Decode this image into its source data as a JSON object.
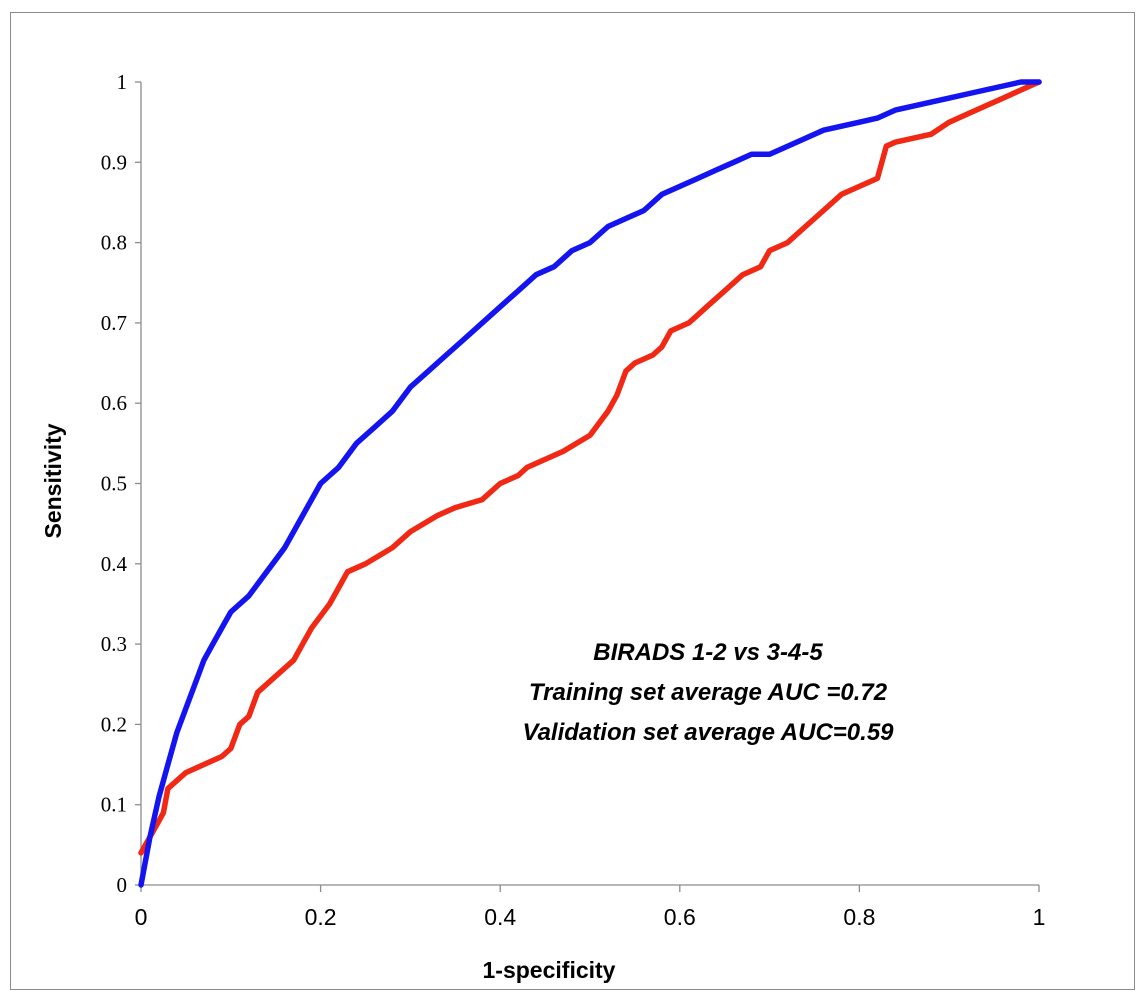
{
  "chart_data": {
    "type": "line",
    "title": "",
    "xlabel": "1-specificity",
    "ylabel": "Sensitivity",
    "xlim": [
      0,
      1
    ],
    "ylim": [
      0,
      1
    ],
    "x_ticks": [
      "0",
      "0.2",
      "0.4",
      "0.6",
      "0.8",
      "1"
    ],
    "y_ticks": [
      "0",
      "0.1",
      "0.2",
      "0.3",
      "0.4",
      "0.5",
      "0.6",
      "0.7",
      "0.8",
      "0.9",
      "1"
    ],
    "grid": false,
    "annotations": [
      {
        "text": "BIRADS 1-2 vs 3-4-5",
        "color": "#000000"
      },
      {
        "text": "Training set average AUC =0.72",
        "color": "#1414f0"
      },
      {
        "text": "Validation set average AUC=0.59",
        "color": "#f02814"
      }
    ],
    "series": [
      {
        "color": "#1414f0",
        "x": [
          0,
          0.01,
          0.02,
          0.03,
          0.04,
          0.05,
          0.06,
          0.07,
          0.08,
          0.09,
          0.1,
          0.12,
          0.14,
          0.16,
          0.18,
          0.2,
          0.22,
          0.24,
          0.26,
          0.28,
          0.3,
          0.32,
          0.34,
          0.36,
          0.38,
          0.4,
          0.42,
          0.44,
          0.46,
          0.48,
          0.5,
          0.52,
          0.54,
          0.56,
          0.58,
          0.6,
          0.62,
          0.64,
          0.66,
          0.68,
          0.7,
          0.72,
          0.74,
          0.76,
          0.78,
          0.8,
          0.82,
          0.84,
          0.86,
          0.88,
          0.9,
          0.92,
          0.94,
          0.96,
          0.98,
          1.0
        ],
        "y": [
          0,
          0.06,
          0.11,
          0.15,
          0.19,
          0.22,
          0.25,
          0.28,
          0.3,
          0.32,
          0.34,
          0.36,
          0.39,
          0.42,
          0.46,
          0.5,
          0.52,
          0.55,
          0.57,
          0.59,
          0.62,
          0.64,
          0.66,
          0.68,
          0.7,
          0.72,
          0.74,
          0.76,
          0.77,
          0.79,
          0.8,
          0.82,
          0.83,
          0.84,
          0.86,
          0.87,
          0.88,
          0.89,
          0.9,
          0.91,
          0.91,
          0.92,
          0.93,
          0.94,
          0.945,
          0.95,
          0.955,
          0.965,
          0.97,
          0.975,
          0.98,
          0.985,
          0.99,
          0.995,
          1.0,
          1.0
        ]
      },
      {
        "color": "#f02814",
        "x": [
          0,
          0.005,
          0.01,
          0.02,
          0.025,
          0.03,
          0.05,
          0.07,
          0.09,
          0.1,
          0.11,
          0.12,
          0.13,
          0.15,
          0.17,
          0.18,
          0.19,
          0.21,
          0.22,
          0.23,
          0.25,
          0.28,
          0.3,
          0.33,
          0.35,
          0.38,
          0.39,
          0.4,
          0.42,
          0.43,
          0.45,
          0.47,
          0.5,
          0.52,
          0.53,
          0.54,
          0.55,
          0.57,
          0.58,
          0.59,
          0.61,
          0.62,
          0.63,
          0.65,
          0.67,
          0.69,
          0.7,
          0.72,
          0.74,
          0.76,
          0.78,
          0.8,
          0.82,
          0.83,
          0.84,
          0.86,
          0.88,
          0.9,
          0.92,
          0.94,
          0.96,
          0.98,
          1.0
        ],
        "y": [
          0.04,
          0.05,
          0.06,
          0.08,
          0.09,
          0.12,
          0.14,
          0.15,
          0.16,
          0.17,
          0.2,
          0.21,
          0.24,
          0.26,
          0.28,
          0.3,
          0.32,
          0.35,
          0.37,
          0.39,
          0.4,
          0.42,
          0.44,
          0.46,
          0.47,
          0.48,
          0.49,
          0.5,
          0.51,
          0.52,
          0.53,
          0.54,
          0.56,
          0.59,
          0.61,
          0.64,
          0.65,
          0.66,
          0.67,
          0.69,
          0.7,
          0.71,
          0.72,
          0.74,
          0.76,
          0.77,
          0.79,
          0.8,
          0.82,
          0.84,
          0.86,
          0.87,
          0.88,
          0.92,
          0.925,
          0.93,
          0.935,
          0.95,
          0.96,
          0.97,
          0.98,
          0.99,
          1.0
        ]
      }
    ]
  }
}
